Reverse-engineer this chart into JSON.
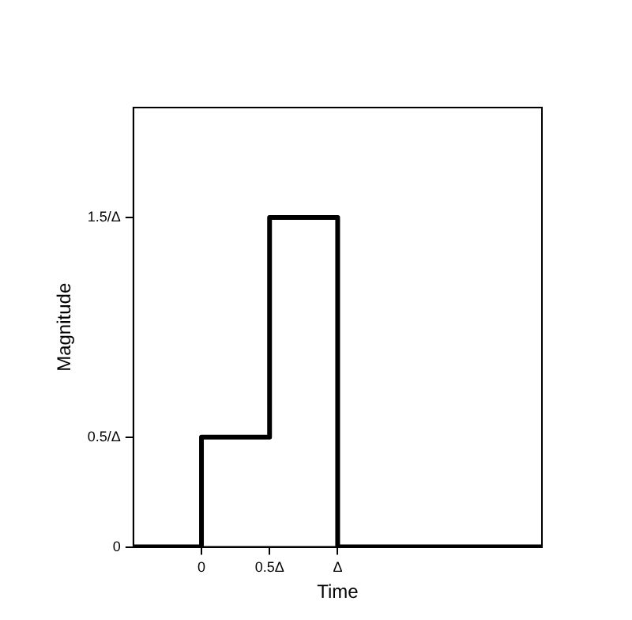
{
  "chart_data": {
    "type": "step",
    "xlabel": "Time",
    "ylabel": "Magnitude",
    "x": [
      -0.5,
      0,
      0.5,
      1,
      2.5
    ],
    "series": [
      {
        "color": "#000000",
        "values": [
          0,
          0.5,
          1.5,
          0,
          0
        ]
      }
    ],
    "xlim": [
      -0.5,
      2.5
    ],
    "xticks": [
      {
        "value": 0,
        "label": "0"
      },
      {
        "value": 0.5,
        "label": "0.5Δ"
      },
      {
        "value": 1,
        "label": "Δ"
      }
    ],
    "ylim": [
      0,
      2
    ],
    "yticks": [
      {
        "value": 0,
        "label": "0"
      },
      {
        "value": 0.5,
        "label": "0.5/Δ"
      },
      {
        "value": 1.5,
        "label": "1.5/Δ"
      }
    ],
    "grid": false,
    "legend": false,
    "marker": "none",
    "line_style": "solid"
  }
}
